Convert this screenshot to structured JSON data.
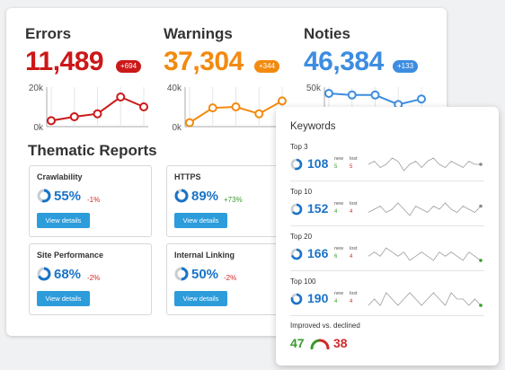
{
  "colors": {
    "error": "#cc1818",
    "warning": "#f28a10",
    "notice": "#3d8de0",
    "green": "#3a9a2e",
    "red": "#d12a2a",
    "blue": "#1a73c8",
    "button": "#2d9cdb",
    "ring_track": "#c9cdd2"
  },
  "metrics": {
    "errors": {
      "title": "Errors",
      "value": "11,489",
      "badge": "+694",
      "axis_top": "20k",
      "axis_bottom": "0k",
      "y_max": 20000,
      "points": [
        3000,
        5000,
        6500,
        15000,
        10000
      ]
    },
    "warnings": {
      "title": "Warnings",
      "value": "37,304",
      "badge": "+344",
      "axis_top": "40k",
      "axis_bottom": "0k",
      "y_max": 40000,
      "points": [
        4000,
        19000,
        20000,
        13000,
        26000
      ]
    },
    "notices": {
      "title": "Noties",
      "value": "46,384",
      "badge": "+133",
      "axis_top": "50k",
      "axis_bottom": "0k",
      "y_max": 50000,
      "points": [
        42000,
        40000,
        40000,
        28000,
        35000
      ]
    }
  },
  "thematic": {
    "title": "Thematic Reports",
    "reports": [
      {
        "name": "Crawlability",
        "percent": "55%",
        "pct_value": 55,
        "delta": "-1%",
        "delta_dir": "down",
        "button": "View details"
      },
      {
        "name": "HTTPS",
        "percent": "89%",
        "pct_value": 89,
        "delta": "+73%",
        "delta_dir": "up",
        "button": "View details"
      },
      {
        "name": "Site Performance",
        "percent": "68%",
        "pct_value": 68,
        "delta": "-2%",
        "delta_dir": "down",
        "button": "View details"
      },
      {
        "name": "Internal Linking",
        "percent": "50%",
        "pct_value": 50,
        "delta": "-2%",
        "delta_dir": "down",
        "button": "View details"
      }
    ]
  },
  "keywords": {
    "title": "Keywords",
    "new_label": "new",
    "lost_label": "lost",
    "rows": [
      {
        "label": "Top 3",
        "value": "108",
        "ring_value": 55,
        "new": "5",
        "lost": "5",
        "end_color": "#888888",
        "spark": [
          5,
          6,
          4,
          5,
          7,
          6,
          3,
          5,
          6,
          4,
          6,
          7,
          5,
          4,
          6,
          5,
          4,
          6,
          5,
          5
        ]
      },
      {
        "label": "Top 10",
        "value": "152",
        "ring_value": 65,
        "new": "4",
        "lost": "4",
        "end_color": "#888888",
        "spark": [
          4,
          5,
          6,
          4,
          5,
          7,
          5,
          3,
          6,
          5,
          4,
          6,
          5,
          7,
          5,
          4,
          6,
          5,
          4,
          6
        ]
      },
      {
        "label": "Top 20",
        "value": "166",
        "ring_value": 70,
        "new": "6",
        "lost": "4",
        "end_color": "#3a9a2e",
        "spark": [
          5,
          6,
          5,
          7,
          6,
          5,
          6,
          4,
          5,
          6,
          5,
          4,
          6,
          5,
          6,
          5,
          4,
          6,
          5,
          4
        ]
      },
      {
        "label": "Top 100",
        "value": "190",
        "ring_value": 80,
        "new": "4",
        "lost": "4",
        "end_color": "#3a9a2e",
        "spark": [
          4,
          5,
          4,
          6,
          5,
          4,
          5,
          6,
          5,
          4,
          5,
          6,
          5,
          4,
          6,
          5,
          5,
          4,
          5,
          4
        ]
      }
    ],
    "improved_label": "Improved vs. declined",
    "improved": "47",
    "declined": "38"
  }
}
